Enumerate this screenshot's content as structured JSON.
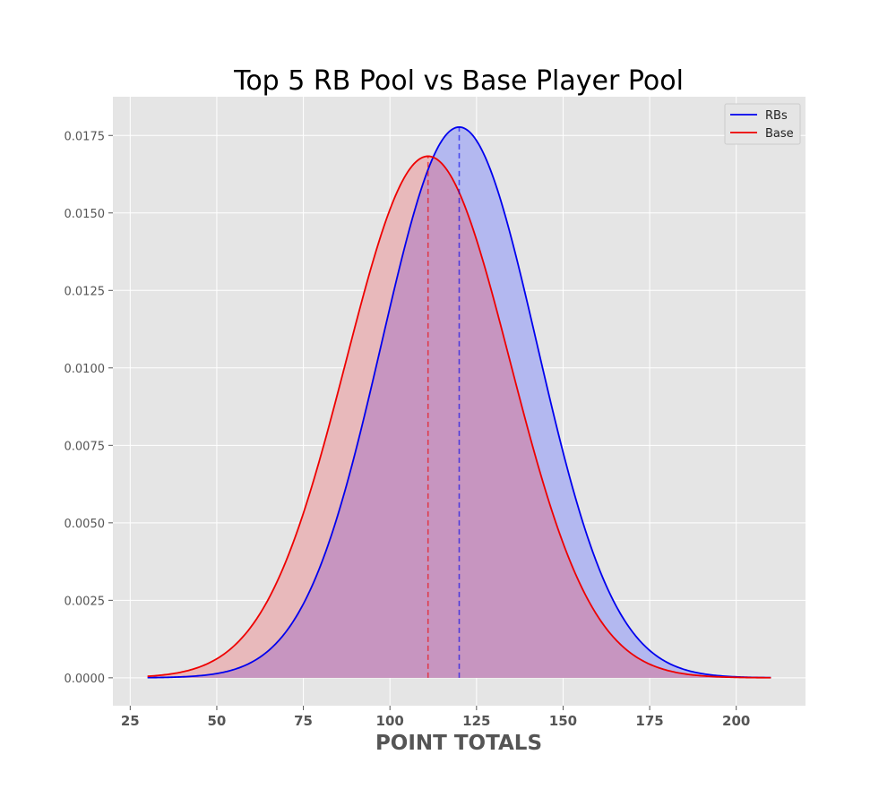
{
  "chart_data": {
    "type": "area",
    "title": "Top 5 RB Pool vs Base Player Pool",
    "xlabel": "POINT TOTALS",
    "ylabel": "",
    "xlim": [
      20,
      220
    ],
    "ylim": [
      -0.0009,
      0.01875
    ],
    "x_range": [
      30,
      210
    ],
    "xticks": [
      25,
      50,
      75,
      100,
      125,
      150,
      175,
      200
    ],
    "xtick_labels": [
      "25",
      "50",
      "75",
      "100",
      "125",
      "150",
      "175",
      "200"
    ],
    "yticks": [
      0,
      0.0025,
      0.005,
      0.0075,
      0.01,
      0.0125,
      0.015,
      0.0175
    ],
    "ytick_labels": [
      "0.0000",
      "0.0025",
      "0.0050",
      "0.0075",
      "0.0100",
      "0.0125",
      "0.0150",
      "0.0175"
    ],
    "grid": true,
    "legend_position": "top-right",
    "series": [
      {
        "name": "RBs",
        "distribution": "normal",
        "mean": 120,
        "std": 22.45,
        "peak": 0.01777,
        "color": "#0000ee",
        "fill": "#b3b8f0"
      },
      {
        "name": "Base",
        "distribution": "normal",
        "mean": 111,
        "std": 23.7,
        "peak": 0.01683,
        "color": "#ee0000",
        "fill": "#e8b9bb"
      }
    ],
    "overlap_fill": "#c795c0",
    "plot_background": "#e5e5e5"
  }
}
